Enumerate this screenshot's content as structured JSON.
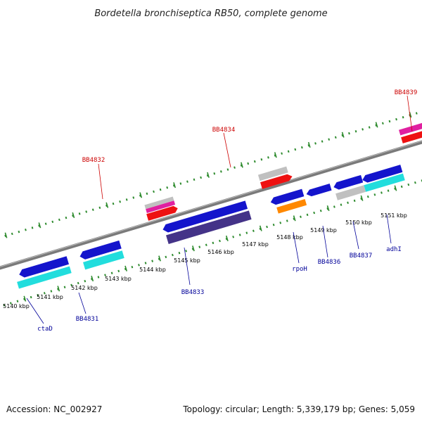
{
  "header": {
    "title": "Bordetella bronchiseptica RB50, complete genome"
  },
  "footer": {
    "accession": "Accession: NC_002927",
    "topology": "Topology: circular; Length: 5,339,179 bp; Genes: 5,059"
  },
  "scale": {
    "ticks": [
      "5140 kbp",
      "5141 kbp",
      "5142 kbp",
      "5143 kbp",
      "5144 kbp",
      "5145 kbp",
      "5146 kbp",
      "5147 kbp",
      "5148 kbp",
      "5149 kbp",
      "5150 kbp",
      "5151 kbp"
    ]
  },
  "labels": {
    "top": [
      "BB4832",
      "BB4834",
      "BB4839"
    ],
    "bottom": [
      "ctaD",
      "BB4831",
      "BB4833",
      "rpoH",
      "BB4836",
      "BB4837",
      "adhI"
    ]
  },
  "colors": {
    "backbone": "#888888",
    "tick": "#2e8b2e",
    "blue_gene": "#1414cc",
    "cyan_gene": "#22dddd",
    "red_gene": "#ee1111",
    "magenta_gene": "#e020a0",
    "grey_gene": "#c0c0c0",
    "orange_gene": "#ff8800",
    "navy_gene": "#443388",
    "top_label": "#cc0000",
    "bottom_label": "#000099"
  }
}
